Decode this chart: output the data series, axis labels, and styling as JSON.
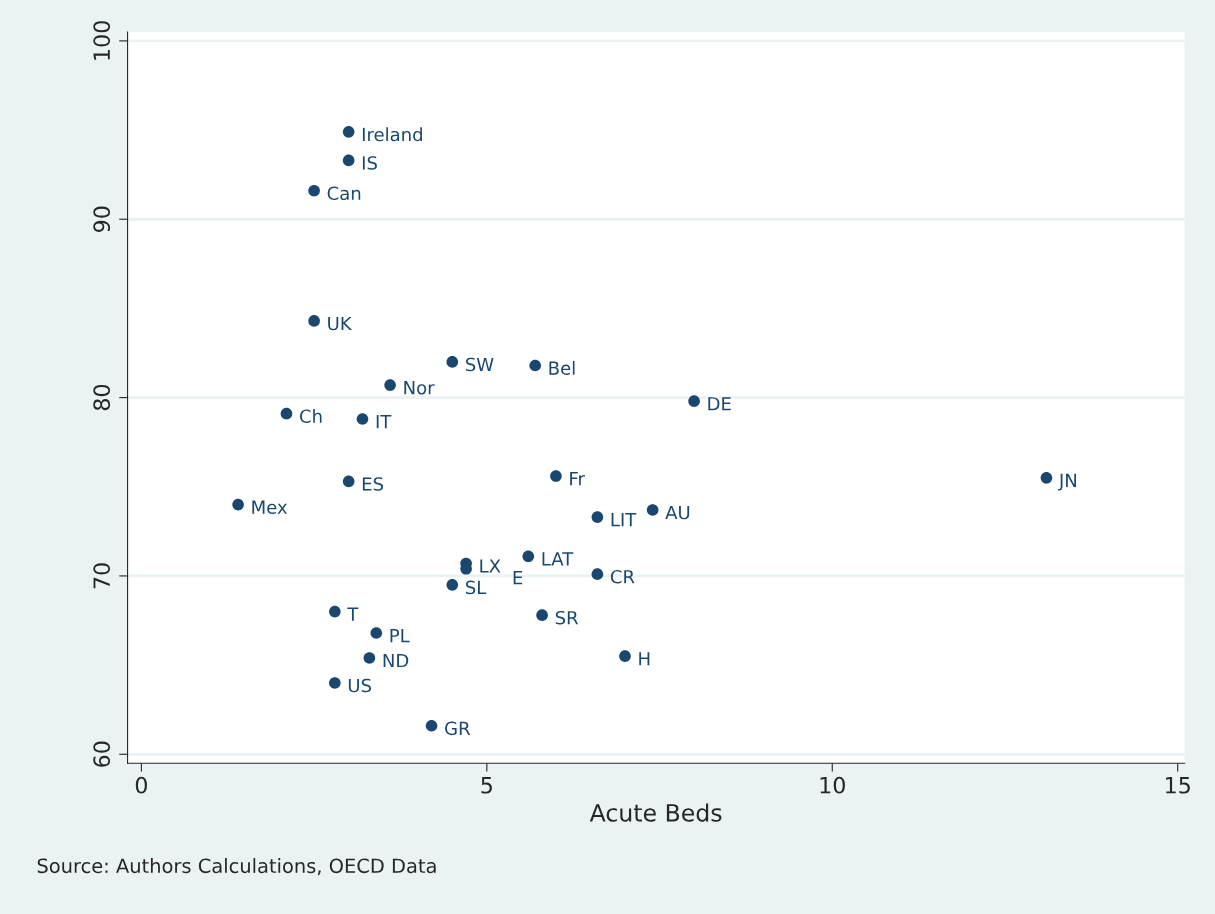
{
  "chart_data": {
    "type": "scatter",
    "xlabel": "Acute Beds",
    "annotations": [
      "Source: Authors Calculations, OECD Data",
      {
        "text": "Ireland",
        "x": 3.0,
        "y": 94.9
      },
      {
        "text": "IS",
        "x": 3.0,
        "y": 93.3
      },
      {
        "text": "Can",
        "x": 2.5,
        "y": 91.6
      },
      {
        "text": "UK",
        "x": 2.5,
        "y": 84.3
      },
      {
        "text": "SW",
        "x": 4.5,
        "y": 82.0
      },
      {
        "text": "Bel",
        "x": 5.7,
        "y": 81.8
      },
      {
        "text": "Nor",
        "x": 3.6,
        "y": 80.7
      },
      {
        "text": "DE",
        "x": 8.0,
        "y": 79.8
      },
      {
        "text": "Ch",
        "x": 2.1,
        "y": 79.1
      },
      {
        "text": "IT",
        "x": 3.2,
        "y": 78.8
      },
      {
        "text": "ES",
        "x": 3.0,
        "y": 75.3
      },
      {
        "text": "Fr",
        "x": 6.0,
        "y": 75.6
      },
      {
        "text": "JN",
        "x": 13.1,
        "y": 75.5
      },
      {
        "text": "Mex",
        "x": 1.4,
        "y": 74.0
      },
      {
        "text": "AU",
        "x": 7.4,
        "y": 73.7
      },
      {
        "text": "LIT",
        "x": 6.6,
        "y": 73.3
      },
      {
        "text": "LAT",
        "x": 5.6,
        "y": 71.1
      },
      {
        "text": "LX",
        "x": 4.7,
        "y": 70.7
      },
      {
        "text": "E",
        "x": 4.7,
        "y": 70.4
      },
      {
        "text": "CR",
        "x": 6.6,
        "y": 70.1
      },
      {
        "text": "SL",
        "x": 4.5,
        "y": 69.5
      },
      {
        "text": "T",
        "x": 2.8,
        "y": 68.0
      },
      {
        "text": "SR",
        "x": 5.8,
        "y": 67.8
      },
      {
        "text": "PL",
        "x": 3.4,
        "y": 66.8
      },
      {
        "text": "ND",
        "x": 3.3,
        "y": 65.4
      },
      {
        "text": "H",
        "x": 7.0,
        "y": 65.5
      },
      {
        "text": "US",
        "x": 2.8,
        "y": 64.0
      },
      {
        "text": "GR",
        "x": 4.2,
        "y": 61.6
      }
    ],
    "x": [
      3.0,
      3.0,
      2.5,
      2.5,
      4.5,
      5.7,
      3.6,
      8.0,
      2.1,
      3.2,
      3.0,
      6.0,
      13.1,
      1.4,
      7.4,
      6.6,
      5.6,
      4.7,
      4.7,
      6.6,
      4.5,
      2.8,
      5.8,
      3.4,
      3.3,
      7.0,
      2.8,
      4.2
    ],
    "values": [
      94.9,
      93.3,
      91.6,
      84.3,
      82.0,
      81.8,
      80.7,
      79.8,
      79.1,
      78.8,
      75.3,
      75.6,
      75.5,
      74.0,
      73.7,
      73.3,
      71.1,
      70.7,
      70.4,
      70.1,
      69.5,
      68.0,
      67.8,
      66.8,
      65.4,
      65.5,
      64.0,
      61.6
    ],
    "color": "#1a476f",
    "marker": "circle",
    "xlim": [
      -0.2,
      15.1
    ],
    "xticks": [
      0,
      5,
      10,
      15
    ],
    "ylim": [
      59.5,
      100.5
    ],
    "yticks": [
      60,
      70,
      80,
      90,
      100
    ],
    "grid": "y",
    "legend": false
  }
}
